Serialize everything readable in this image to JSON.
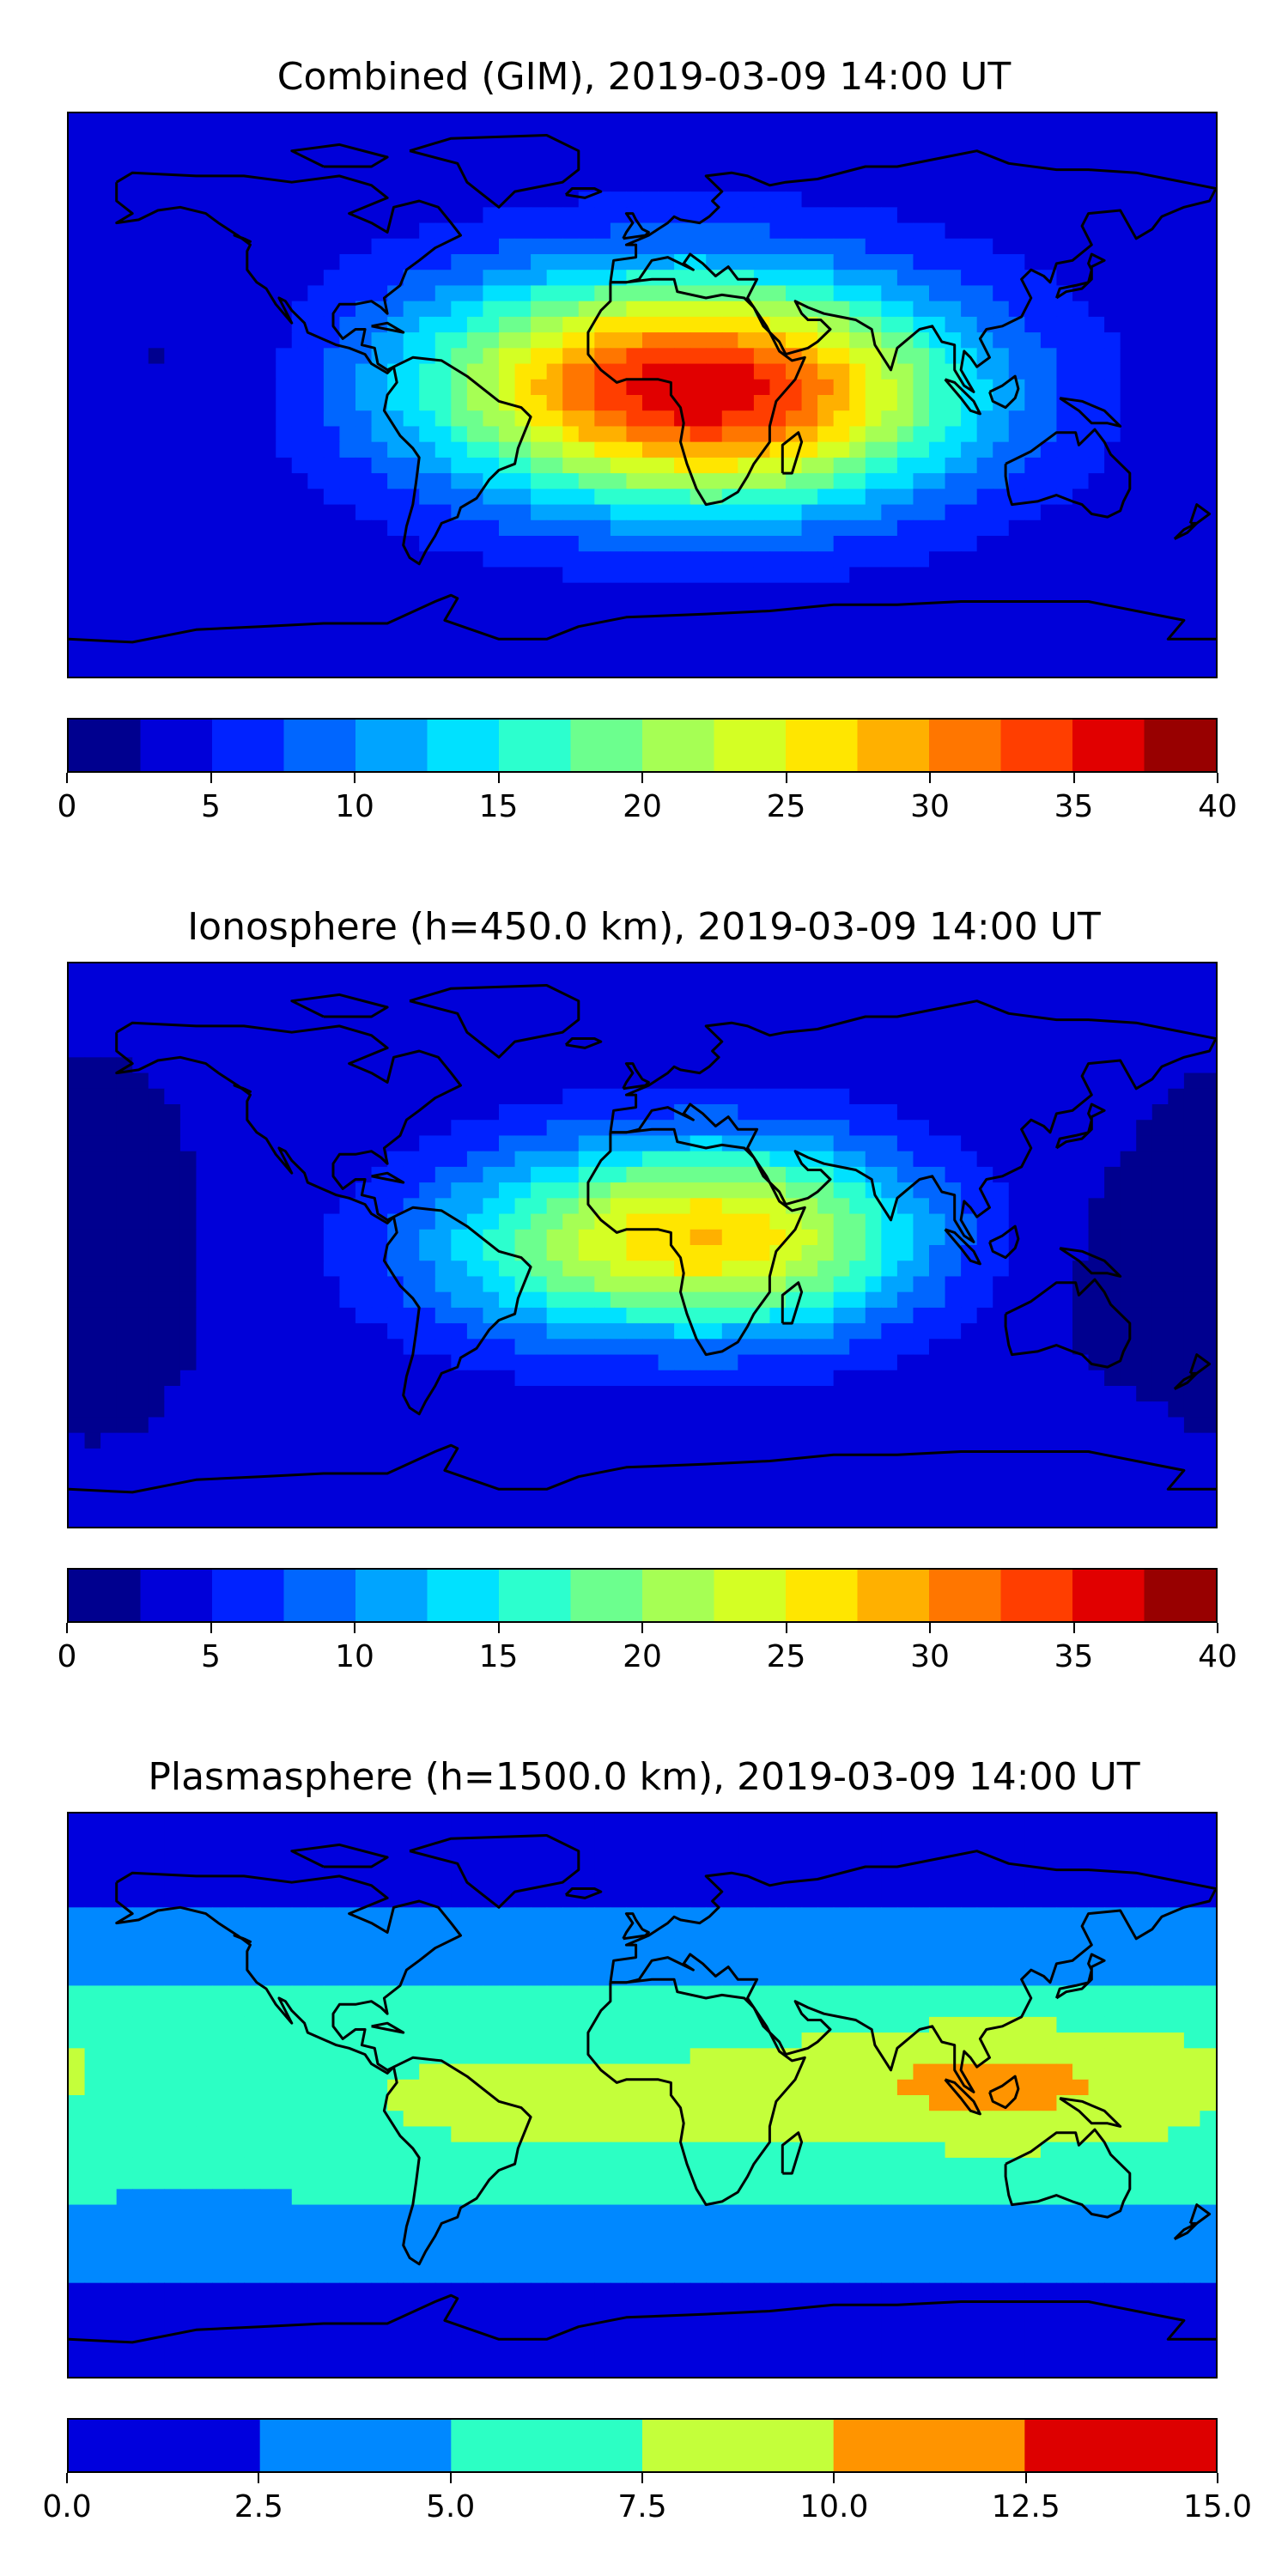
{
  "chart_data": [
    {
      "type": "heatmap",
      "title": "Combined (GIM), 2019-03-09 14:00 UT",
      "colorbar": {
        "levels": [
          0,
          2.5,
          5,
          7.5,
          10,
          12.5,
          15,
          17.5,
          20,
          22.5,
          25,
          27.5,
          30,
          32.5,
          35,
          37.5,
          40
        ],
        "colors": [
          "#00008f",
          "#0000d9",
          "#0022ff",
          "#0066ff",
          "#00a4ff",
          "#00e1ff",
          "#2cffce",
          "#6cff8e",
          "#a6ff54",
          "#d4ff24",
          "#ffe600",
          "#ffb000",
          "#ff7600",
          "#ff3e00",
          "#e10000",
          "#980000"
        ],
        "tick_labels": [
          "0",
          "5",
          "10",
          "15",
          "20",
          "25",
          "30",
          "35",
          "40"
        ],
        "tick_values": [
          0,
          5,
          10,
          15,
          20,
          25,
          30,
          35,
          40
        ]
      },
      "field": {
        "background_value": 3.5,
        "features": [
          {
            "lon": 15,
            "lat": 3,
            "sx": 55,
            "sy": 25,
            "amp": 30
          },
          {
            "lon": 60,
            "lat": -5,
            "sx": 40,
            "sy": 22,
            "amp": 4
          },
          {
            "lon": -45,
            "lat": 5,
            "sx": 40,
            "sy": 22,
            "amp": 3
          },
          {
            "lon": 20,
            "lat": -25,
            "sx": 40,
            "sy": 18,
            "amp": 2
          },
          {
            "lon": -140,
            "lat": 10,
            "sx": 30,
            "sy": 15,
            "amp": -1.5
          }
        ]
      }
    },
    {
      "type": "heatmap",
      "title": "Ionosphere  (h=450.0 km), 2019-03-09 14:00 UT",
      "colorbar": {
        "levels": [
          0,
          2.5,
          5,
          7.5,
          10,
          12.5,
          15,
          17.5,
          20,
          22.5,
          25,
          27.5,
          30,
          32.5,
          35,
          37.5,
          40
        ],
        "colors": [
          "#00008f",
          "#0000d9",
          "#0022ff",
          "#0066ff",
          "#00a4ff",
          "#00e1ff",
          "#2cffce",
          "#6cff8e",
          "#a6ff54",
          "#d4ff24",
          "#ffe600",
          "#ffb000",
          "#ff7600",
          "#ff3e00",
          "#e10000",
          "#980000"
        ],
        "tick_labels": [
          "0",
          "5",
          "10",
          "15",
          "20",
          "25",
          "30",
          "35",
          "40"
        ],
        "tick_values": [
          0,
          5,
          10,
          15,
          20,
          25,
          30,
          35,
          40
        ]
      },
      "field": {
        "background_value": 3,
        "features": [
          {
            "lon": 18,
            "lat": 3,
            "sx": 48,
            "sy": 22,
            "amp": 22
          },
          {
            "lon": -40,
            "lat": -5,
            "sx": 35,
            "sy": 20,
            "amp": 4
          },
          {
            "lon": 50,
            "lat": 0,
            "sx": 30,
            "sy": 20,
            "amp": 3
          },
          {
            "lon": 150,
            "lat": -5,
            "sx": 40,
            "sy": 25,
            "amp": -1.5
          },
          {
            "lon": -170,
            "lat": 0,
            "sx": 20,
            "sy": 40,
            "amp": -1.5
          }
        ]
      }
    },
    {
      "type": "heatmap",
      "title": "Plasmasphere (h=1500.0 km), 2019-03-09 14:00 UT",
      "colorbar": {
        "levels": [
          0,
          2.5,
          5,
          7.5,
          10,
          12.5,
          15
        ],
        "colors": [
          "#0000dd",
          "#0088ff",
          "#2cffc4",
          "#c4ff3a",
          "#ff9400",
          "#dd0000"
        ],
        "tick_labels": [
          "0.0",
          "2.5",
          "5.0",
          "7.5",
          "10.0",
          "12.5",
          "15.0"
        ],
        "tick_values": [
          0,
          2.5,
          5,
          7.5,
          10,
          12.5,
          15
        ]
      },
      "field": {
        "background_value": 1.5,
        "band": {
          "lat": 0,
          "sy": 32,
          "amp": 6
        },
        "features": [
          {
            "lon": 110,
            "lat": 5,
            "sx": 45,
            "sy": 14,
            "amp": 3.2
          },
          {
            "lon": -25,
            "lat": -3,
            "sx": 28,
            "sy": 8,
            "amp": 2.2
          },
          {
            "lon": -140,
            "lat": -5,
            "sx": 30,
            "sy": 12,
            "amp": -2
          }
        ]
      }
    }
  ]
}
